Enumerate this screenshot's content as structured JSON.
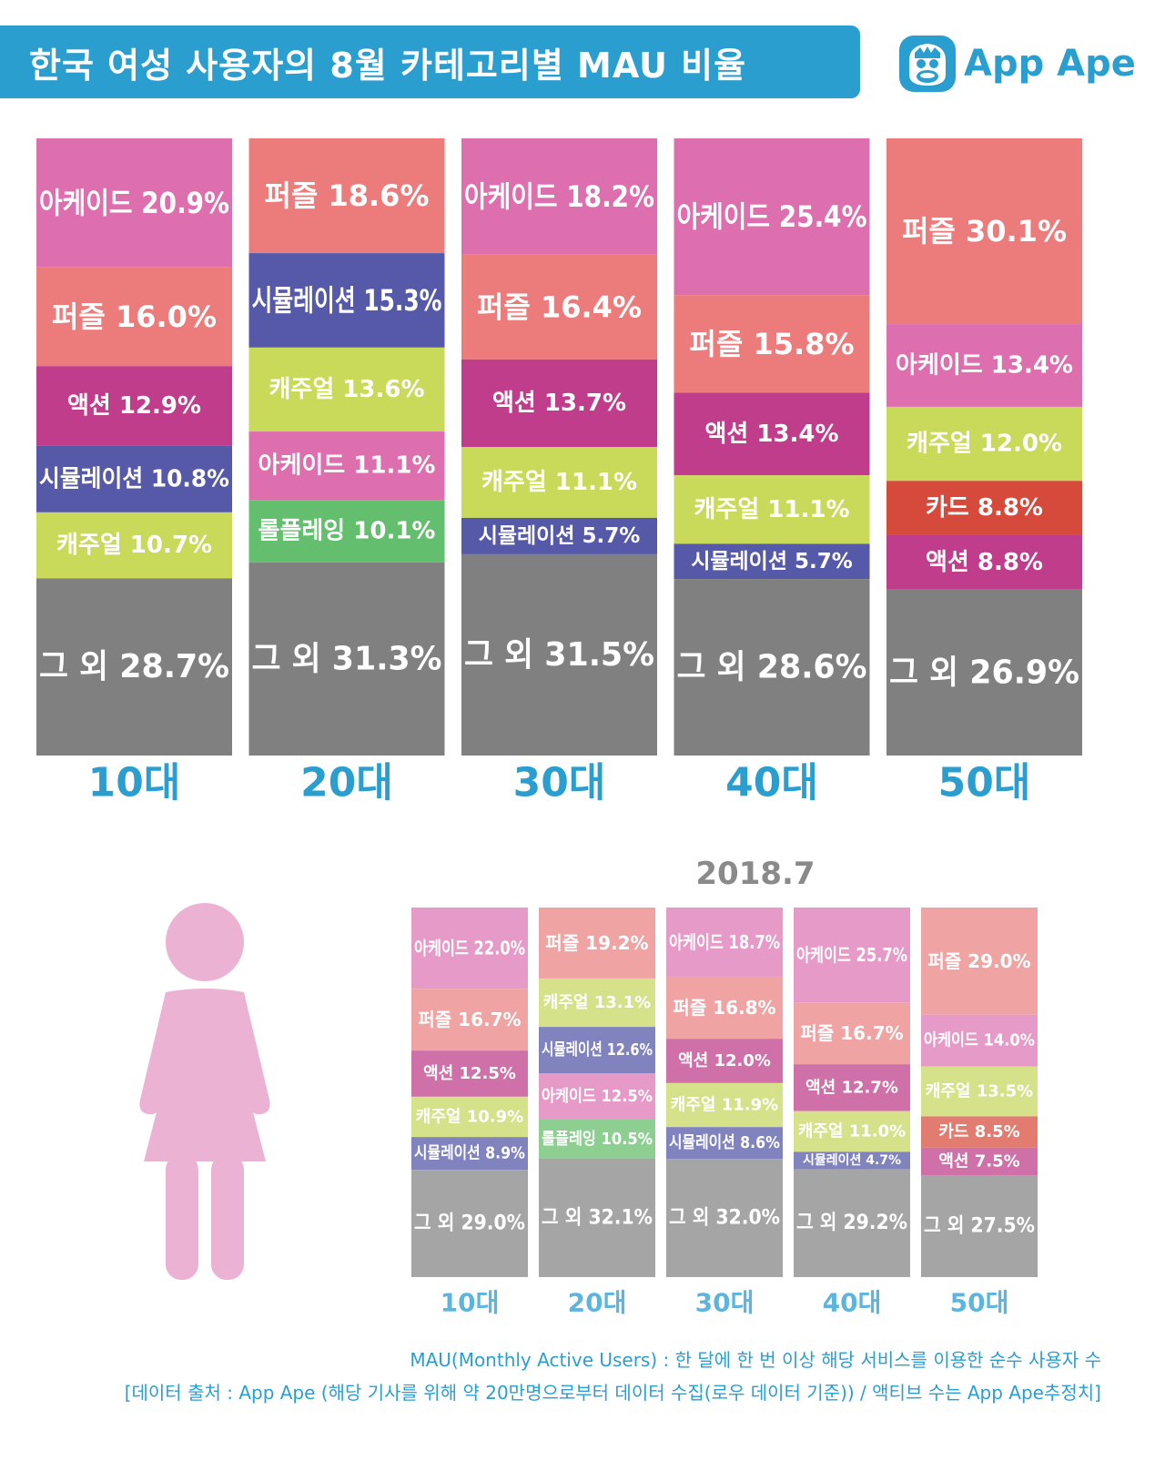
{
  "title": "한국 여성 사용자의 8월 카테고리별 MAU 비율",
  "logo": {
    "text": "App Ape",
    "icon": "ape-face-icon"
  },
  "colors": {
    "아케이드": "#dd6faf",
    "퍼즐": "#ec7b7b",
    "액션": "#c03d8b",
    "시뮬레이션": "#5559a7",
    "캐주얼": "#c9d95a",
    "롤플레잉": "#63be6d",
    "카드": "#d64a3c",
    "그 외": "#808080",
    "prev_아케이드": "#e59ac8",
    "prev_퍼즐": "#efa3a3",
    "prev_액션": "#cf70a9",
    "prev_시뮬레이션": "#8183bf",
    "prev_캐주얼": "#d6e28a",
    "prev_롤플레잉": "#8ccf91",
    "prev_카드": "#e27c70",
    "prev_그 외": "#a5a5a5",
    "accent": "#2b9ed0"
  },
  "chart_data": [
    {
      "type": "bar",
      "stacked": true,
      "period": "August",
      "categories": [
        "10대",
        "20대",
        "30대",
        "40대",
        "50대"
      ],
      "bars": [
        {
          "age": "10대",
          "segments": [
            {
              "name": "아케이드",
              "label": "아케이드 20.9%",
              "value": 20.9
            },
            {
              "name": "퍼즐",
              "label": "퍼즐 16.0%",
              "value": 16.0
            },
            {
              "name": "액션",
              "label": "액션 12.9%",
              "value": 12.9
            },
            {
              "name": "시뮬레이션",
              "label": "시뮬레이션 10.8%",
              "value": 10.8
            },
            {
              "name": "캐주얼",
              "label": "캐주얼 10.7%",
              "value": 10.7
            },
            {
              "name": "그 외",
              "label": "그 외 28.7%",
              "value": 28.7
            }
          ]
        },
        {
          "age": "20대",
          "segments": [
            {
              "name": "퍼즐",
              "label": "퍼즐 18.6%",
              "value": 18.6
            },
            {
              "name": "시뮬레이션",
              "label": "시뮬레이션 15.3%",
              "value": 15.3
            },
            {
              "name": "캐주얼",
              "label": "캐주얼 13.6%",
              "value": 13.6
            },
            {
              "name": "아케이드",
              "label": "아케이드 11.1%",
              "value": 11.1
            },
            {
              "name": "롤플레잉",
              "label": "롤플레잉 10.1%",
              "value": 10.1
            },
            {
              "name": "그 외",
              "label": "그 외 31.3%",
              "value": 31.3
            }
          ]
        },
        {
          "age": "30대",
          "segments": [
            {
              "name": "아케이드",
              "label": "아케이드 18.2%",
              "value": 18.2
            },
            {
              "name": "퍼즐",
              "label": "퍼즐 16.4%",
              "value": 16.4
            },
            {
              "name": "액션",
              "label": "액션 13.7%",
              "value": 13.7
            },
            {
              "name": "캐주얼",
              "label": "캐주얼 11.1%",
              "value": 11.1
            },
            {
              "name": "시뮬레이션",
              "label": "시뮬레이션 5.7%",
              "value": 5.7
            },
            {
              "name": "그 외",
              "label": "그 외 31.5%",
              "value": 31.5
            }
          ]
        },
        {
          "age": "40대",
          "segments": [
            {
              "name": "아케이드",
              "label": "아케이드 25.4%",
              "value": 25.4
            },
            {
              "name": "퍼즐",
              "label": "퍼즐 15.8%",
              "value": 15.8
            },
            {
              "name": "액션",
              "label": "액션 13.4%",
              "value": 13.4
            },
            {
              "name": "캐주얼",
              "label": "캐주얼 11.1%",
              "value": 11.1
            },
            {
              "name": "시뮬레이션",
              "label": "시뮬레이션 5.7%",
              "value": 5.7
            },
            {
              "name": "그 외",
              "label": "그 외 28.6%",
              "value": 28.6
            }
          ]
        },
        {
          "age": "50대",
          "segments": [
            {
              "name": "퍼즐",
              "label": "퍼즐 30.1%",
              "value": 30.1
            },
            {
              "name": "아케이드",
              "label": "아케이드 13.4%",
              "value": 13.4
            },
            {
              "name": "캐주얼",
              "label": "캐주얼 12.0%",
              "value": 12.0
            },
            {
              "name": "카드",
              "label": "카드 8.8%",
              "value": 8.8
            },
            {
              "name": "액션",
              "label": "액션 8.8%",
              "value": 8.8
            },
            {
              "name": "그 외",
              "label": "그 외 26.9%",
              "value": 26.9
            }
          ]
        }
      ]
    },
    {
      "type": "bar",
      "stacked": true,
      "title": "2018.7",
      "categories": [
        "10대",
        "20대",
        "30대",
        "40대",
        "50대"
      ],
      "bars": [
        {
          "age": "10대",
          "segments": [
            {
              "name": "아케이드",
              "label": "아케이드 22.0%",
              "value": 22.0
            },
            {
              "name": "퍼즐",
              "label": "퍼즐 16.7%",
              "value": 16.7
            },
            {
              "name": "액션",
              "label": "액션 12.5%",
              "value": 12.5
            },
            {
              "name": "캐주얼",
              "label": "캐주얼 10.9%",
              "value": 10.9
            },
            {
              "name": "시뮬레이션",
              "label": "시뮬레이션 8.9%",
              "value": 8.9
            },
            {
              "name": "그 외",
              "label": "그 외 29.0%",
              "value": 29.0
            }
          ]
        },
        {
          "age": "20대",
          "segments": [
            {
              "name": "퍼즐",
              "label": "퍼즐 19.2%",
              "value": 19.2
            },
            {
              "name": "캐주얼",
              "label": "캐주얼 13.1%",
              "value": 13.1
            },
            {
              "name": "시뮬레이션",
              "label": "시뮬레이션 12.6%",
              "value": 12.6
            },
            {
              "name": "아케이드",
              "label": "아케이드 12.5%",
              "value": 12.5
            },
            {
              "name": "롤플레잉",
              "label": "롤플레잉 10.5%",
              "value": 10.5
            },
            {
              "name": "그 외",
              "label": "그 외 32.1%",
              "value": 32.1
            }
          ]
        },
        {
          "age": "30대",
          "segments": [
            {
              "name": "아케이드",
              "label": "아케이드 18.7%",
              "value": 18.7
            },
            {
              "name": "퍼즐",
              "label": "퍼즐 16.8%",
              "value": 16.8
            },
            {
              "name": "액션",
              "label": "액션 12.0%",
              "value": 12.0
            },
            {
              "name": "캐주얼",
              "label": "캐주얼 11.9%",
              "value": 11.9
            },
            {
              "name": "시뮬레이션",
              "label": "시뮬레이션 8.6%",
              "value": 8.6
            },
            {
              "name": "그 외",
              "label": "그 외 32.0%",
              "value": 32.0
            }
          ]
        },
        {
          "age": "40대",
          "segments": [
            {
              "name": "아케이드",
              "label": "아케이드 25.7%",
              "value": 25.7
            },
            {
              "name": "퍼즐",
              "label": "퍼즐 16.7%",
              "value": 16.7
            },
            {
              "name": "액션",
              "label": "액션 12.7%",
              "value": 12.7
            },
            {
              "name": "캐주얼",
              "label": "캐주얼 11.0%",
              "value": 11.0
            },
            {
              "name": "시뮬레이션",
              "label": "시뮬레이션 4.7%",
              "value": 4.7
            },
            {
              "name": "그 외",
              "label": "그 외 29.2%",
              "value": 29.2
            }
          ]
        },
        {
          "age": "50대",
          "segments": [
            {
              "name": "퍼즐",
              "label": "퍼즐 29.0%",
              "value": 29.0
            },
            {
              "name": "아케이드",
              "label": "아케이드 14.0%",
              "value": 14.0
            },
            {
              "name": "캐주얼",
              "label": "캐주얼 13.5%",
              "value": 13.5
            },
            {
              "name": "카드",
              "label": "카드 8.5%",
              "value": 8.5
            },
            {
              "name": "액션",
              "label": "액션 7.5%",
              "value": 7.5
            },
            {
              "name": "그 외",
              "label": "그 외 27.5%",
              "value": 27.5
            }
          ]
        }
      ]
    }
  ],
  "footnotes": [
    "MAU(Monthly Active Users) : 한 달에 한 번 이상 해당 서비스를 이용한 순수 사용자 수",
    "[데이터 출처 : App Ape (해당 기사를 위해 약 20만명으로부터 데이터 수집(로우 데이터 기준)) / 액티브 수는 App Ape추정치]"
  ]
}
